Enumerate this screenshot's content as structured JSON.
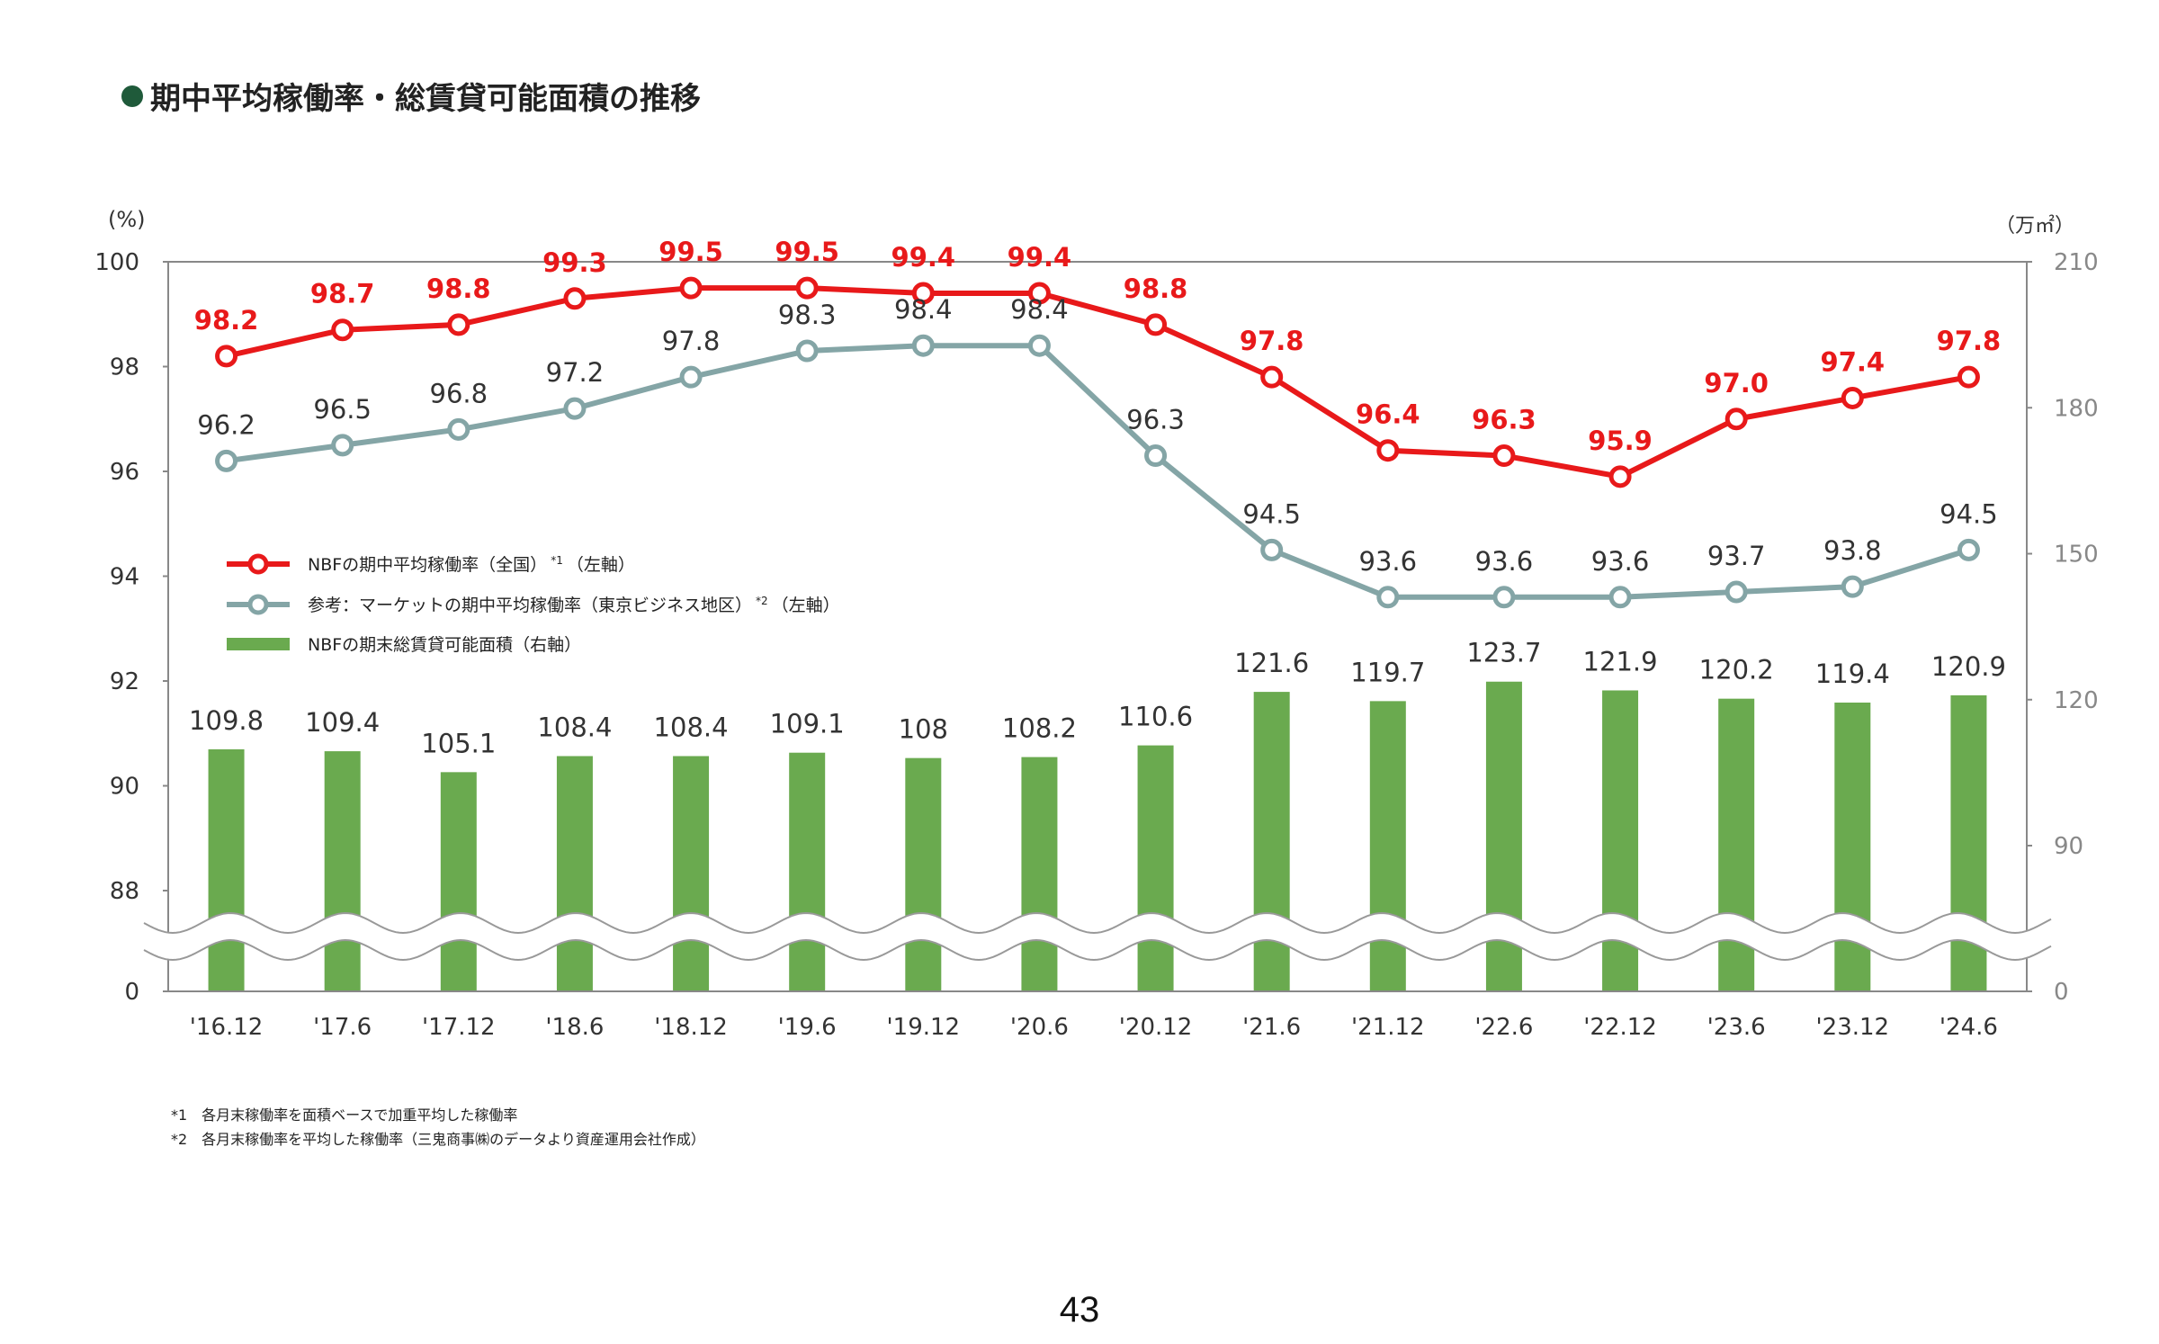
{
  "title": "期中平均稼働率・総賃貸可能面積の推移",
  "page_number": "43",
  "footnotes": [
    "*1　各月末稼働率を面積ベースで加重平均した稼働率",
    "*2　各月末稼働率を平均した稼働率（三鬼商事㈱のデータより資産運用会社作成）"
  ],
  "colors": {
    "nbf": "#e8191a",
    "market": "#84a5a6",
    "bar": "#6aaa4f",
    "heading_dot": "#1f5a3a"
  },
  "chart_data": {
    "type": "bar+line",
    "left_axis": {
      "unit_label": "(%)",
      "ticks": [
        "0",
        "88",
        "90",
        "92",
        "94",
        "96",
        "98",
        "100"
      ],
      "range": [
        86.5,
        100
      ],
      "broken": true
    },
    "right_axis": {
      "unit_label": "（万㎡）",
      "ticks": [
        "0",
        "90",
        "120",
        "150",
        "180",
        "210"
      ],
      "range": [
        60,
        210
      ],
      "broken": true
    },
    "categories": [
      "'16.12",
      "'17.6",
      "'17.12",
      "'18.6",
      "'18.12",
      "'19.6",
      "'19.12",
      "'20.6",
      "'20.12",
      "'21.6",
      "'21.12",
      "'22.6",
      "'22.12",
      "'23.6",
      "'23.12",
      "'24.6"
    ],
    "series": [
      {
        "name": "NBFの期中平均稼働率（全国）*1（左軸）",
        "legend_label": "NBFの期中平均稼働率（全国）",
        "legend_sup": "*1",
        "legend_suffix": "（左軸）",
        "type": "line",
        "axis": "left",
        "values": [
          98.2,
          98.7,
          98.8,
          99.3,
          99.5,
          99.5,
          99.4,
          99.4,
          98.8,
          97.8,
          96.4,
          96.3,
          95.9,
          97.0,
          97.4,
          97.8
        ],
        "labels": [
          "98.2",
          "98.7",
          "98.8",
          "99.3",
          "99.5",
          "99.5",
          "99.4",
          "99.4",
          "98.8",
          "97.8",
          "96.4",
          "96.3",
          "95.9",
          "97.0",
          "97.4",
          "97.8"
        ]
      },
      {
        "name": "参考：マーケットの期中平均稼働率（東京ビジネス地区）*2（左軸）",
        "legend_label": "参考：マーケットの期中平均稼働率（東京ビジネス地区）",
        "legend_sup": "*2",
        "legend_suffix": "（左軸）",
        "type": "line",
        "axis": "left",
        "values": [
          96.2,
          96.5,
          96.8,
          97.2,
          97.8,
          98.3,
          98.4,
          98.4,
          96.3,
          94.5,
          93.6,
          93.6,
          93.6,
          93.7,
          93.8,
          94.5
        ],
        "labels": [
          "96.2",
          "96.5",
          "96.8",
          "97.2",
          "97.8",
          "98.3",
          "98.4",
          "98.4",
          "96.3",
          "94.5",
          "93.6",
          "93.6",
          "93.6",
          "93.7",
          "93.8",
          "94.5"
        ]
      },
      {
        "name": "NBFの期末総賃貸可能面積（右軸）",
        "legend_label": "NBFの期末総賃貸可能面積（右軸）",
        "legend_sup": "",
        "legend_suffix": "",
        "type": "bar",
        "axis": "right",
        "values": [
          109.8,
          109.4,
          105.1,
          108.4,
          108.4,
          109.1,
          108,
          108.2,
          110.6,
          121.6,
          119.7,
          123.7,
          121.9,
          120.2,
          119.4,
          120.9
        ],
        "labels": [
          "109.8",
          "109.4",
          "105.1",
          "108.4",
          "108.4",
          "109.1",
          "108",
          "108.2",
          "110.6",
          "121.6",
          "119.7",
          "123.7",
          "121.9",
          "120.2",
          "119.4",
          "120.9"
        ]
      }
    ],
    "legend": "inside, left-middle",
    "grid": false
  }
}
